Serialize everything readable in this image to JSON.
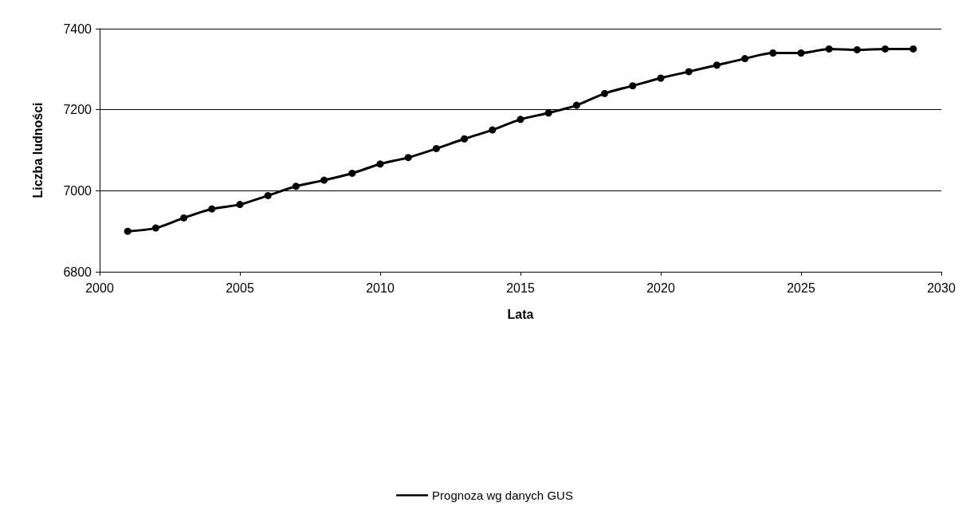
{
  "chart_data": {
    "type": "line",
    "xlabel": "Lata",
    "ylabel": "Liczba ludności",
    "x": [
      2001,
      2002,
      2003,
      2004,
      2005,
      2006,
      2007,
      2008,
      2009,
      2010,
      2011,
      2012,
      2013,
      2014,
      2015,
      2016,
      2017,
      2018,
      2019,
      2020,
      2021,
      2022,
      2023,
      2024,
      2025,
      2026,
      2027,
      2028,
      2029
    ],
    "series": [
      {
        "name": "Prognoza wg danych GUS",
        "color": "#000000",
        "values": [
          6900,
          6908,
          6933,
          6955,
          6966,
          6988,
          7011,
          7026,
          7043,
          7066,
          7082,
          7104,
          7128,
          7150,
          7176,
          7192,
          7211,
          7240,
          7259,
          7278,
          7294,
          7310,
          7326,
          7340,
          7340,
          7350,
          7348,
          7350,
          7350
        ]
      }
    ],
    "xlim": [
      2000,
      2030
    ],
    "xticks": [
      2000,
      2005,
      2010,
      2015,
      2020,
      2025,
      2030
    ],
    "ylim": [
      6800,
      7400
    ],
    "yticks": [
      6800,
      7000,
      7200,
      7400
    ],
    "grid": "y",
    "legend": "bottom",
    "marker": "circle",
    "line_style": "solid"
  }
}
